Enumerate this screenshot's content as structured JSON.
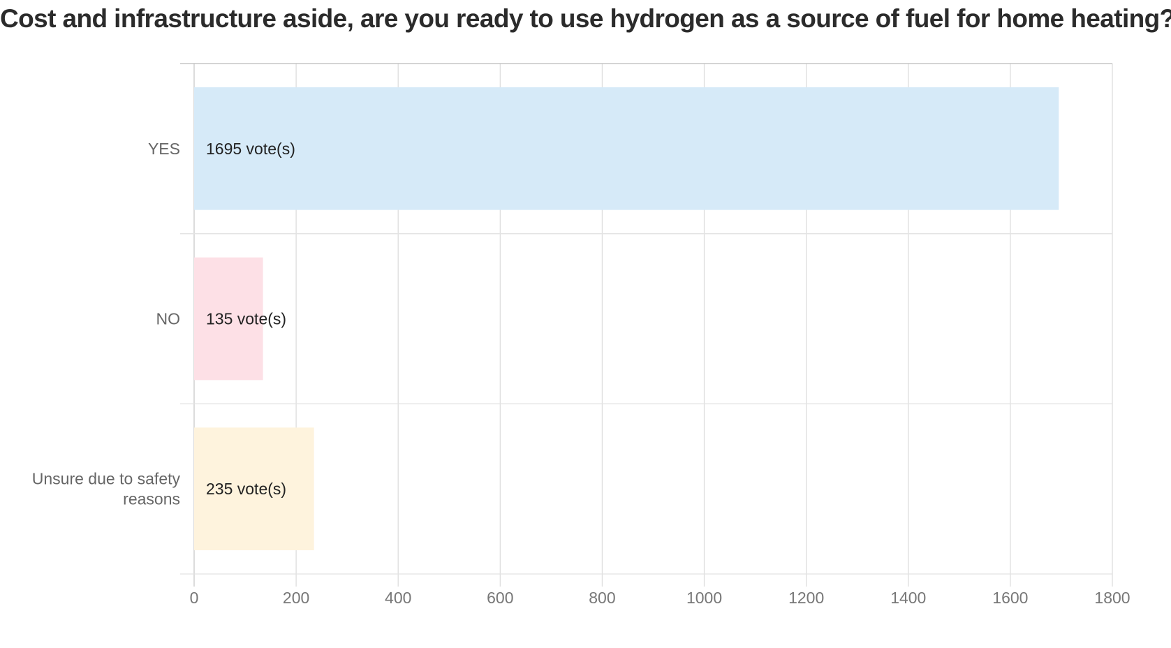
{
  "chart_data": {
    "type": "bar",
    "orientation": "horizontal",
    "title": "Cost and infrastructure aside, are you ready to use hydrogen as a source of fuel for home heating?",
    "categories": [
      "YES",
      "NO",
      "Unsure due to safety reasons"
    ],
    "category_lines": [
      [
        "YES"
      ],
      [
        "NO"
      ],
      [
        "Unsure due to safety",
        "reasons"
      ]
    ],
    "values": [
      1695,
      135,
      235
    ],
    "data_labels": [
      "1695 vote(s)",
      "135 vote(s)",
      "235 vote(s)"
    ],
    "colors": [
      "#d6eaf8",
      "#fde0e6",
      "#fef3dd"
    ],
    "xlim": [
      0,
      1800
    ],
    "xticks": [
      0,
      200,
      400,
      600,
      800,
      1000,
      1200,
      1400,
      1600,
      1800
    ],
    "xlabel": "",
    "ylabel": "",
    "grid": true,
    "legend": "none"
  }
}
